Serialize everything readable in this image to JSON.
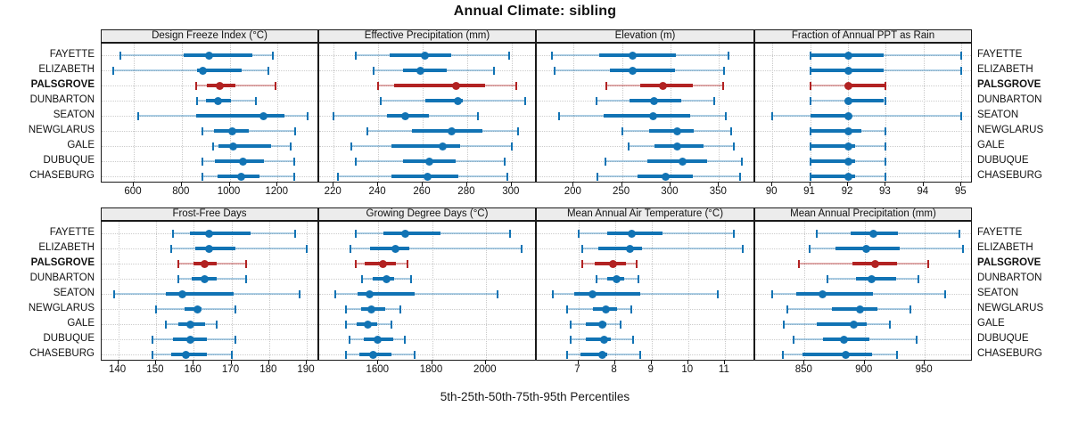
{
  "title": "Annual Climate: sibling",
  "caption": "5th-25th-50th-75th-95th Percentiles",
  "chart_data": {
    "type": "dotplot-intervals",
    "title": "Annual Climate: sibling",
    "caption": "5th-25th-50th-75th-95th Percentiles",
    "percentiles": [
      5,
      25,
      50,
      75,
      95
    ],
    "legend": "none",
    "grid": "dotted",
    "layout": {
      "grid_rows": 2,
      "grid_cols": 4,
      "row_labels_both_sides": true
    },
    "rows": [
      "FAYETTE",
      "ELIZABETH",
      "PALSGROVE",
      "DUNBARTON",
      "SEATON",
      "NEWGLARUS",
      "GALE",
      "DUBUQUE",
      "CHASEBURG"
    ],
    "highlight_row": "PALSGROVE",
    "colors": {
      "series": "#1173b4",
      "highlight": "#b22222",
      "strip_bg": "#ececec",
      "gridline": "#cccccc",
      "border": "#1a1a1a"
    },
    "panels": [
      {
        "title": "Design Freeze Index (°C)",
        "xlim": [
          466,
          1374
        ],
        "ticks": [
          600,
          800,
          1000,
          1200
        ],
        "series": [
          [
            545,
            810,
            915,
            1095,
            1180
          ],
          [
            515,
            865,
            890,
            1050,
            1160
          ],
          [
            860,
            905,
            960,
            1025,
            1190
          ],
          [
            865,
            900,
            950,
            1005,
            1110
          ],
          [
            620,
            860,
            1140,
            1230,
            1325
          ],
          [
            885,
            935,
            1010,
            1080,
            1275
          ],
          [
            930,
            955,
            1015,
            1175,
            1255
          ],
          [
            885,
            940,
            1055,
            1145,
            1270
          ],
          [
            885,
            950,
            1050,
            1125,
            1270
          ]
        ]
      },
      {
        "title": "Effective Precipitation (mm)",
        "xlim": [
          213.5,
          311.3
        ],
        "ticks": [
          220,
          240,
          260,
          280,
          300
        ],
        "series": [
          [
            230,
            245,
            261,
            273,
            299
          ],
          [
            238,
            251,
            259,
            271,
            292
          ],
          [
            240,
            247,
            275,
            288,
            302
          ],
          [
            241,
            261,
            276,
            278,
            306
          ],
          [
            220,
            244,
            252,
            263,
            285
          ],
          [
            235,
            255,
            273,
            287,
            303
          ],
          [
            228,
            246,
            269,
            277,
            300
          ],
          [
            230,
            251,
            263,
            275,
            297
          ],
          [
            222,
            246,
            262,
            276,
            298
          ]
        ]
      },
      {
        "title": "Elevation (m)",
        "xlim": [
          162,
          387.5
        ],
        "ticks": [
          200,
          250,
          300,
          350
        ],
        "series": [
          [
            178,
            226,
            261,
            306,
            360
          ],
          [
            180,
            237,
            261,
            305,
            355
          ],
          [
            234,
            269,
            292,
            323,
            354
          ],
          [
            224,
            258,
            283,
            311,
            345
          ],
          [
            185,
            231,
            282,
            320,
            357
          ],
          [
            250,
            278,
            307,
            324,
            363
          ],
          [
            257,
            283,
            307,
            334,
            365
          ],
          [
            233,
            276,
            312,
            338,
            374
          ],
          [
            225,
            266,
            295,
            323,
            372
          ]
        ]
      },
      {
        "title": "Fraction of Annual PPT as Rain",
        "xlim": [
          89.55,
          95.3
        ],
        "ticks": [
          90,
          91,
          92,
          93,
          94,
          95
        ],
        "series": [
          [
            91,
            91,
            92,
            92.95,
            95
          ],
          [
            91,
            91,
            92,
            92.95,
            95
          ],
          [
            91,
            91.95,
            92,
            92.98,
            93
          ],
          [
            91,
            91.95,
            92,
            92.95,
            93
          ],
          [
            90,
            91,
            92,
            92.1,
            95
          ],
          [
            91,
            91,
            92,
            92.35,
            93
          ],
          [
            91,
            91,
            92,
            92.2,
            93
          ],
          [
            91,
            91,
            92,
            92.2,
            93
          ],
          [
            91,
            91,
            92,
            92.2,
            93
          ]
        ]
      },
      {
        "title": "Frost-Free Days",
        "xlim": [
          135.6,
          193.3
        ],
        "ticks": [
          140,
          150,
          160,
          170,
          180,
          190
        ],
        "series": [
          [
            154.5,
            159,
            164,
            175,
            187
          ],
          [
            154,
            160.5,
            164,
            171,
            190
          ],
          [
            156,
            160,
            163,
            166,
            174
          ],
          [
            156,
            159.5,
            163,
            166,
            174
          ],
          [
            139,
            152.5,
            157,
            170.5,
            188
          ],
          [
            150,
            157.5,
            161,
            162,
            171
          ],
          [
            152.5,
            156,
            159,
            163,
            166
          ],
          [
            149,
            154.5,
            159,
            163.5,
            171
          ],
          [
            149,
            154,
            158,
            163.5,
            170
          ]
        ]
      },
      {
        "title": "Growing Degree Days (°C)",
        "xlim": [
          1380,
          2190
        ],
        "ticks": [
          1600,
          1800,
          2000
        ],
        "series": [
          [
            1515,
            1620,
            1700,
            1830,
            2090
          ],
          [
            1495,
            1570,
            1665,
            1715,
            2135
          ],
          [
            1515,
            1550,
            1618,
            1665,
            1710
          ],
          [
            1538,
            1578,
            1632,
            1660,
            1722
          ],
          [
            1438,
            1524,
            1568,
            1735,
            2043
          ],
          [
            1480,
            1535,
            1575,
            1625,
            1683
          ],
          [
            1478,
            1519,
            1562,
            1595,
            1649
          ],
          [
            1492,
            1546,
            1597,
            1654,
            1700
          ],
          [
            1478,
            1530,
            1582,
            1649,
            1735
          ]
        ]
      },
      {
        "title": "Mean Annual Air Temperature (°C)",
        "xlim": [
          5.87,
          11.83
        ],
        "ticks": [
          7,
          8,
          9,
          10,
          11
        ],
        "series": [
          [
            7.0,
            7.8,
            8.45,
            9.3,
            11.25
          ],
          [
            7.1,
            7.55,
            8.4,
            8.75,
            11.5
          ],
          [
            7.1,
            7.45,
            7.95,
            8.3,
            8.6
          ],
          [
            7.5,
            7.8,
            8.05,
            8.25,
            8.65
          ],
          [
            6.3,
            6.9,
            7.4,
            8.7,
            10.8
          ],
          [
            6.7,
            7.4,
            7.75,
            8.05,
            8.45
          ],
          [
            6.8,
            7.2,
            7.65,
            7.77,
            8.15
          ],
          [
            6.8,
            7.2,
            7.7,
            7.9,
            8.5
          ],
          [
            6.7,
            7.05,
            7.65,
            7.8,
            8.7
          ]
        ]
      },
      {
        "title": "Mean Annual Precipitation (mm)",
        "xlim": [
          809,
          990
        ],
        "ticks": [
          850,
          900,
          950
        ],
        "series": [
          [
            860,
            888,
            907,
            928,
            979
          ],
          [
            854,
            876,
            901,
            929,
            982
          ],
          [
            845,
            890,
            909,
            927,
            953
          ],
          [
            869,
            893,
            906,
            926,
            945
          ],
          [
            823,
            843,
            865,
            907,
            967
          ],
          [
            836,
            873,
            896,
            911,
            938
          ],
          [
            833,
            860,
            891,
            902,
            921
          ],
          [
            841,
            865,
            883,
            904,
            943
          ],
          [
            832,
            848,
            884,
            906,
            927
          ]
        ]
      }
    ]
  }
}
